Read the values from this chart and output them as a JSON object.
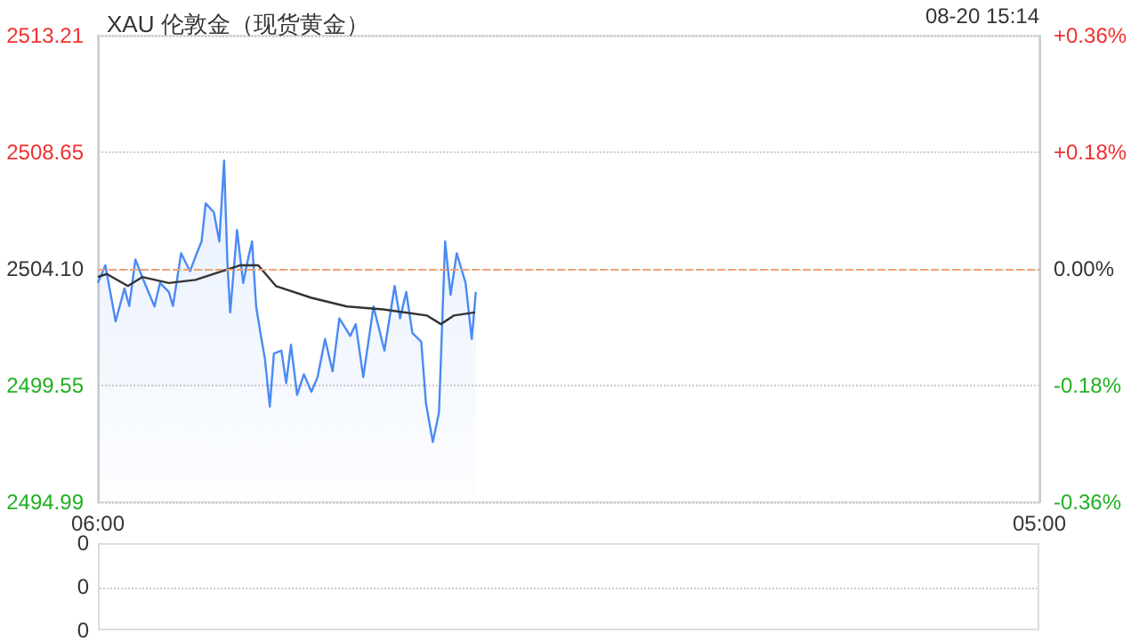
{
  "chart_data": [
    {
      "type": "area",
      "title": "XAU 伦敦金（现货黄金）",
      "annotations": [
        "08-20 15:14"
      ],
      "xlim": [
        "--08-20T06:00",
        "--08-21T05:00"
      ],
      "xticks": [
        {
          "value": "--08-20T06:00",
          "label": "06:00"
        },
        {
          "value": "--08-21T05:00",
          "label": "05:00"
        }
      ],
      "ylim": [
        2494.99,
        2513.21
      ],
      "yticks": [
        2494.99,
        2499.55,
        {
          "value": 2504.1,
          "label": "2504.10"
        },
        2508.65,
        2513.21
      ],
      "y2lim": [
        -0.36,
        0.36
      ],
      "y2ticks": [
        {
          "value": -0.36,
          "label": "-0.36%"
        },
        {
          "value": -0.18,
          "label": "-0.18%"
        },
        {
          "value": 0,
          "label": "0.00%"
        },
        {
          "value": 0.18,
          "label": "+0.18%"
        },
        {
          "value": 0.36,
          "label": "+0.36%"
        }
      ],
      "grid": "y",
      "marker": "none",
      "ref_lines": [
        {
          "axis": "y",
          "value": 2504.1,
          "label": null,
          "color": "#f0a070",
          "line_style": "dashed"
        }
      ],
      "series": [
        {
          "color": "#4a8af4",
          "x": [
            "--08-20T06:00",
            "--08-20T06:11",
            "--08-20T06:26",
            "--08-20T06:39",
            "--08-20T06:46",
            "--08-20T06:55",
            "--08-20T07:05",
            "--08-20T07:23",
            "--08-20T07:31",
            "--08-20T07:44",
            "--08-20T07:50",
            "--08-20T08:02",
            "--08-20T08:15",
            "--08-20T08:25",
            "--08-20T08:32",
            "--08-20T08:38",
            "--08-20T08:50",
            "--08-20T08:58",
            "--08-20T09:05",
            "--08-20T09:10",
            "--08-20T09:14",
            "--08-20T09:24",
            "--08-20T09:33",
            "--08-20T09:40",
            "--08-20T09:46",
            "--08-20T09:52",
            "--08-20T09:59",
            "--08-20T10:05",
            "--08-20T10:12",
            "--08-20T10:18",
            "--08-20T10:29",
            "--08-20T10:36",
            "--08-20T10:43",
            "--08-20T10:52",
            "--08-20T11:02",
            "--08-20T11:13",
            "--08-20T11:22",
            "--08-20T11:33",
            "--08-20T11:44",
            "--08-20T11:54",
            "--08-20T12:10",
            "--08-20T12:18",
            "--08-20T12:29",
            "--08-20T12:44",
            "--08-20T13:00",
            "--08-20T13:15",
            "--08-20T13:23",
            "--08-20T13:32",
            "--08-20T13:41",
            "--08-20T13:54",
            "--08-20T14:01",
            "--08-20T14:11",
            "--08-20T14:20",
            "--08-20T14:29",
            "--08-20T14:37",
            "--08-20T14:46",
            "--08-20T14:59",
            "--08-20T15:08",
            "--08-20T15:14"
          ],
          "values": [
            2503.55,
            2504.24,
            2502.05,
            2503.34,
            2502.65,
            2504.47,
            2503.78,
            2502.63,
            2503.55,
            2503.2,
            2502.65,
            2504.71,
            2504.01,
            2504.71,
            2505.17,
            2506.66,
            2506.31,
            2505.17,
            2508.33,
            2504.24,
            2502.4,
            2505.62,
            2503.55,
            2504.47,
            2505.17,
            2502.63,
            2501.48,
            2500.56,
            2498.72,
            2500.79,
            2500.91,
            2499.64,
            2501.14,
            2499.18,
            2499.98,
            2499.3,
            2499.87,
            2501.36,
            2500.1,
            2502.17,
            2501.48,
            2501.94,
            2499.87,
            2502.63,
            2500.91,
            2503.43,
            2502.17,
            2503.2,
            2501.59,
            2501.25,
            2498.83,
            2497.34,
            2498.49,
            2505.17,
            2503.09,
            2504.71,
            2503.55,
            2501.36,
            2503.2
          ]
        },
        {
          "type": "line",
          "color": "#333333",
          "x": [
            "--08-20T06:00",
            "--08-20T06:13",
            "--08-20T06:44",
            "--08-20T07:05",
            "--08-20T07:44",
            "--08-20T08:23",
            "--08-20T09:02",
            "--08-20T09:29",
            "--08-20T09:55",
            "--08-20T10:21",
            "--08-20T11:13",
            "--08-20T12:05",
            "--08-20T12:58",
            "--08-20T14:02",
            "--08-20T14:23",
            "--08-20T14:42",
            "--08-20T15:13"
          ],
          "values": [
            2503.78,
            2503.9,
            2503.43,
            2503.78,
            2503.55,
            2503.67,
            2504.01,
            2504.24,
            2504.24,
            2503.43,
            2502.97,
            2502.63,
            2502.52,
            2502.28,
            2501.94,
            2502.28,
            2502.4
          ]
        }
      ]
    },
    {
      "type": "other",
      "annotations": [
        "0",
        "0",
        "0"
      ]
    }
  ]
}
